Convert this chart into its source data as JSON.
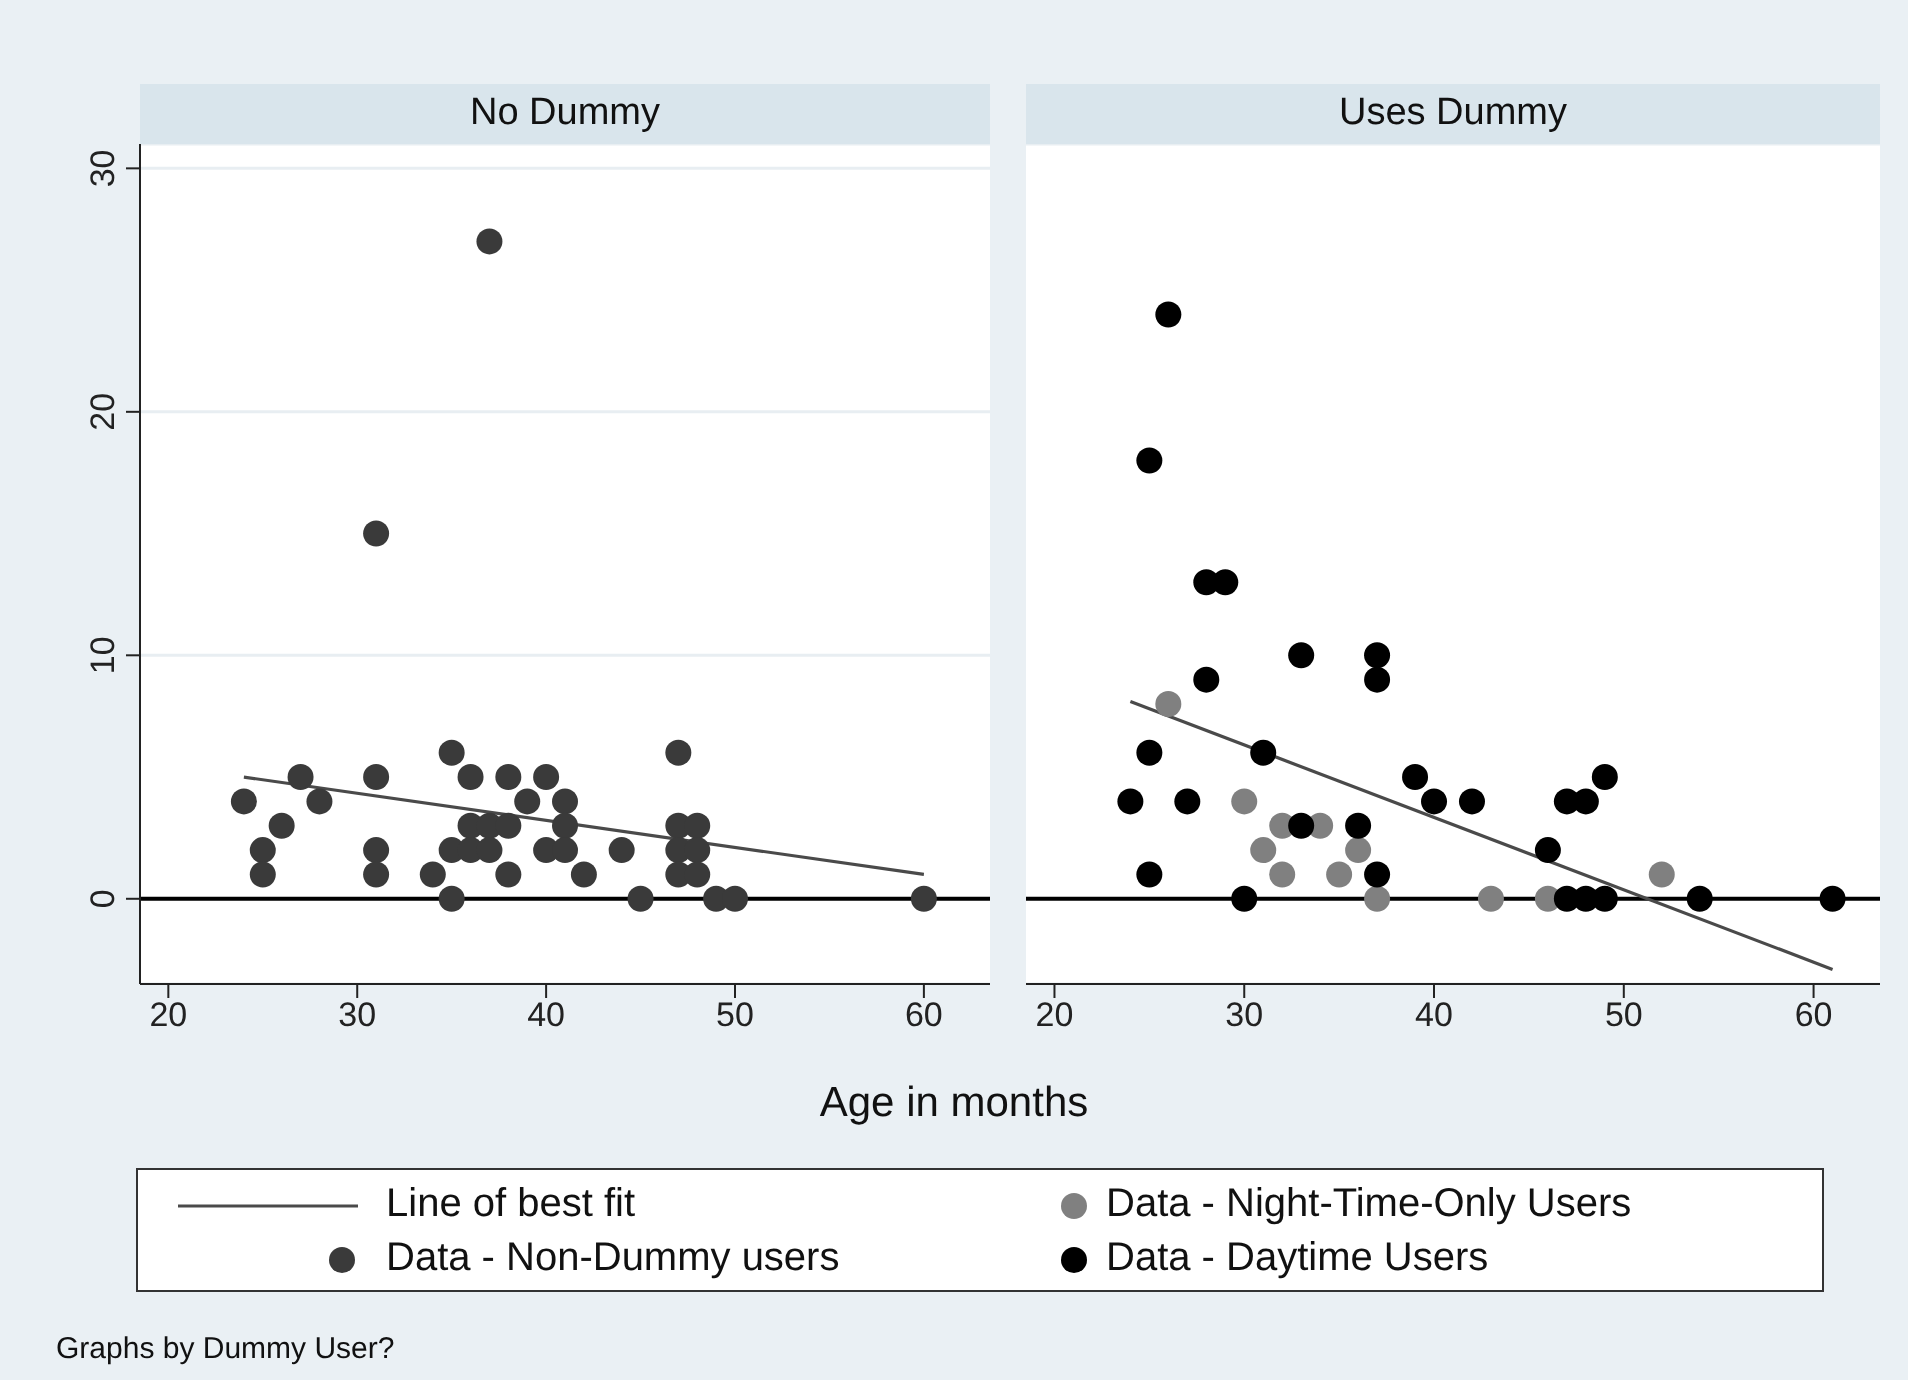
{
  "chart_data": [
    {
      "type": "scatter",
      "title": "No Dummy",
      "xlabel": "Age in months",
      "xlim": [
        18.5,
        63.5
      ],
      "xticks": [
        20,
        30,
        40,
        50,
        60
      ],
      "ylim": [
        -3.5,
        31
      ],
      "yticks": [
        0,
        10,
        20,
        30
      ],
      "grid": "y",
      "legend": "bottom",
      "ref_lines": [
        {
          "axis": "y",
          "value": 0,
          "color": "#000000"
        }
      ],
      "series": [
        {
          "name": "Line of best fit",
          "type": "line",
          "color": "#4a4a4a",
          "x": [
            24,
            60
          ],
          "values": [
            5.0,
            1.0
          ]
        },
        {
          "name": "Data - Non-Dummy users",
          "marker": "circle",
          "color": "#3a3a3a",
          "x": [
            24,
            25,
            25,
            26,
            27,
            28,
            31,
            31,
            31,
            31,
            34,
            35,
            35,
            35,
            36,
            36,
            36,
            37,
            37,
            37,
            38,
            38,
            38,
            39,
            40,
            40,
            41,
            41,
            41,
            42,
            44,
            45,
            47,
            47,
            47,
            47,
            48,
            48,
            48,
            49,
            50,
            60
          ],
          "values": [
            4,
            2,
            1,
            3,
            5,
            4,
            15,
            5,
            2,
            1,
            1,
            6,
            2,
            0,
            5,
            3,
            2,
            27,
            3,
            2,
            5,
            3,
            1,
            4,
            5,
            2,
            4,
            3,
            2,
            1,
            2,
            0,
            6,
            3,
            2,
            1,
            3,
            2,
            1,
            0,
            0,
            0
          ]
        }
      ]
    },
    {
      "type": "scatter",
      "title": "Uses Dummy",
      "xlim": [
        18.5,
        63.5
      ],
      "xticks": [
        20,
        30,
        40,
        50,
        60
      ],
      "ylim": [
        -3.5,
        31
      ],
      "yticks": [
        0,
        10,
        20,
        30
      ],
      "tick_labels": "x",
      "grid": "y",
      "legend": "bottom",
      "ref_lines": [
        {
          "axis": "y",
          "value": 0,
          "color": "#000000"
        }
      ],
      "annotations": [
        "Graphs by Dummy User?"
      ],
      "series": [
        {
          "name": "Line of best fit",
          "type": "line",
          "color": "#4a4a4a",
          "x": [
            24,
            61
          ],
          "values": [
            8.1,
            -2.9
          ]
        },
        {
          "name": "Data - Night-Time-Only Users",
          "marker": "circle",
          "color": "#808080",
          "x": [
            26,
            30,
            31,
            32,
            32,
            34,
            35,
            36,
            37,
            43,
            46,
            52
          ],
          "values": [
            8,
            4,
            2,
            3,
            1,
            3,
            1,
            2,
            0,
            0,
            0,
            1
          ]
        },
        {
          "name": "Data - Daytime Users",
          "marker": "circle",
          "color": "#000000",
          "x": [
            24,
            25,
            25,
            25,
            26,
            27,
            28,
            28,
            29,
            30,
            31,
            33,
            33,
            36,
            37,
            37,
            37,
            39,
            40,
            42,
            46,
            47,
            47,
            48,
            48,
            49,
            49,
            54,
            61
          ],
          "values": [
            4,
            18,
            6,
            1,
            24,
            4,
            13,
            9,
            13,
            0,
            6,
            10,
            3,
            3,
            10,
            9,
            1,
            5,
            4,
            4,
            2,
            4,
            0,
            4,
            0,
            5,
            0,
            0,
            0
          ]
        }
      ]
    }
  ]
}
